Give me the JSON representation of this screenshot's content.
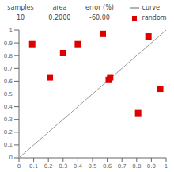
{
  "chart_data": {
    "type": "scatter",
    "annotations": [
      "samples",
      "10",
      "area",
      "0.2000",
      "error (%)",
      "-60.00"
    ],
    "series": [
      {
        "name": "curve",
        "type": "line",
        "color": "#999999",
        "x": [
          0,
          1
        ],
        "values": [
          0,
          1
        ]
      },
      {
        "name": "random",
        "type": "scatter",
        "color": "#dd0000",
        "marker": "square",
        "x": [
          0.09,
          0.21,
          0.3,
          0.4,
          0.57,
          0.61,
          0.62,
          0.81,
          0.88,
          0.96
        ],
        "values": [
          0.89,
          0.63,
          0.82,
          0.89,
          0.97,
          0.61,
          0.63,
          0.35,
          0.95,
          0.54
        ]
      }
    ],
    "xlim": [
      0,
      1
    ],
    "ylim": [
      0,
      1
    ],
    "xticks": [
      0,
      0.1,
      0.2,
      0.3,
      0.4,
      0.5,
      0.6,
      0.7,
      0.8,
      0.9,
      1
    ],
    "yticks": [
      0,
      0.1,
      0.2,
      0.3,
      0.4,
      0.5,
      0.6,
      0.7,
      0.8,
      0.9,
      1
    ]
  }
}
